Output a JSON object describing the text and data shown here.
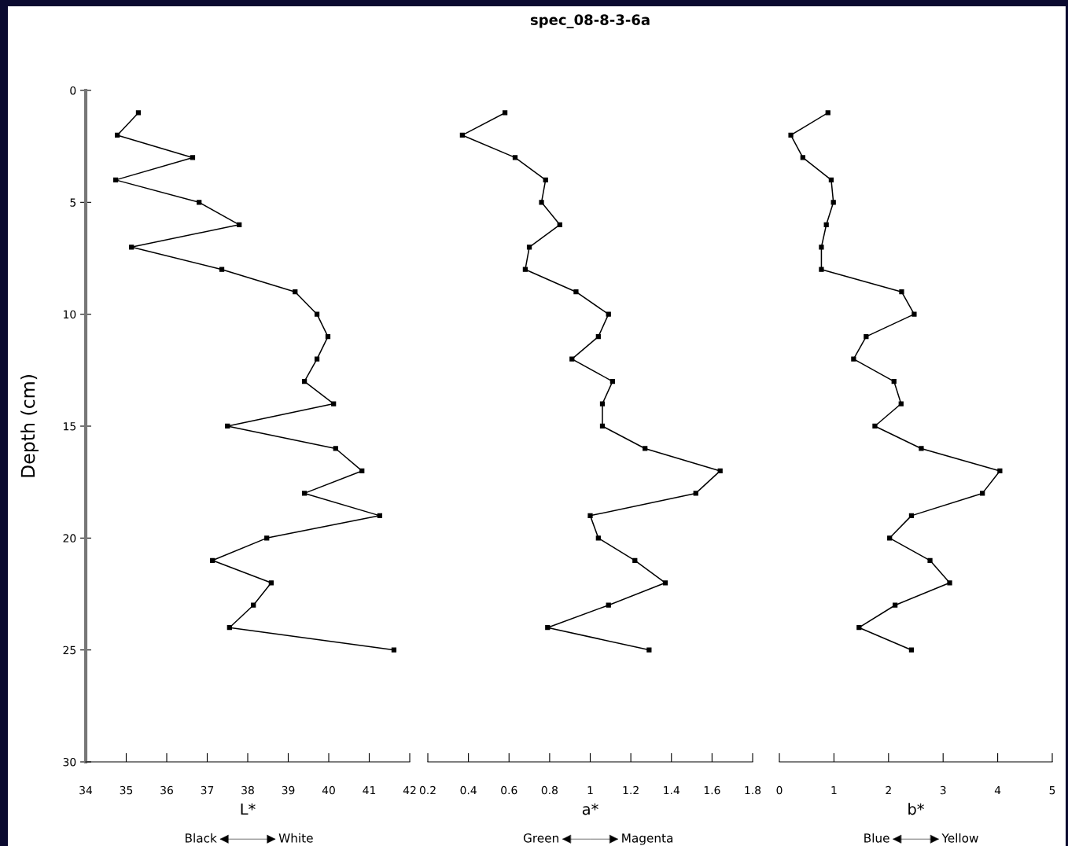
{
  "chart_data": [
    {
      "type": "line",
      "ylabel": "Depth (cm)",
      "xlabel": "L*",
      "annotations": [
        "Black",
        "White"
      ],
      "xlim": [
        34,
        42
      ],
      "xticks": [
        34,
        35,
        36,
        37,
        38,
        39,
        40,
        41,
        42
      ],
      "ylim": [
        30,
        0
      ],
      "yticks": [
        0,
        5,
        10,
        15,
        20,
        25,
        30
      ],
      "marker": "square",
      "line_style": "solid",
      "grid": false,
      "series": [
        {
          "color": "#000000",
          "x": [
            35.3,
            34.78,
            36.64,
            34.74,
            36.8,
            37.79,
            35.13,
            37.36,
            39.17,
            39.71,
            39.98,
            39.71,
            39.4,
            40.12,
            37.5,
            40.17,
            40.82,
            39.4,
            41.26,
            38.47,
            37.13,
            38.58,
            38.14,
            37.55,
            41.61
          ],
          "values": [
            1,
            2,
            3,
            4,
            5,
            6,
            7,
            8,
            9,
            10,
            11,
            12,
            13,
            14,
            15,
            16,
            17,
            18,
            19,
            20,
            21,
            22,
            23,
            24,
            25
          ]
        }
      ]
    },
    {
      "type": "line",
      "title": "spec_08-8-3-6a",
      "xlabel": "a*",
      "annotations": [
        "Green",
        "Magenta"
      ],
      "xlim": [
        0.2,
        1.8
      ],
      "xticks": [
        0.2,
        0.4,
        0.6,
        0.8,
        1,
        1.2,
        1.4,
        1.6,
        1.8
      ],
      "ylim": [
        30,
        0
      ],
      "tick_labels": "x",
      "marker": "square",
      "line_style": "solid",
      "grid": false,
      "series": [
        {
          "color": "#000000",
          "x": [
            0.58,
            0.37,
            0.63,
            0.78,
            0.76,
            0.85,
            0.7,
            0.68,
            0.93,
            1.09,
            1.04,
            0.91,
            1.11,
            1.06,
            1.06,
            1.27,
            1.64,
            1.52,
            1.0,
            1.04,
            1.22,
            1.37,
            1.09,
            0.79,
            1.29
          ],
          "values": [
            1,
            2,
            3,
            4,
            5,
            6,
            7,
            8,
            9,
            10,
            11,
            12,
            13,
            14,
            15,
            16,
            17,
            18,
            19,
            20,
            21,
            22,
            23,
            24,
            25
          ]
        }
      ]
    },
    {
      "type": "line",
      "xlabel": "b*",
      "annotations": [
        "Blue",
        "Yellow"
      ],
      "xlim": [
        0,
        5
      ],
      "xticks": [
        0,
        1,
        2,
        3,
        4,
        5
      ],
      "ylim": [
        30,
        0
      ],
      "tick_labels": "x",
      "marker": "square",
      "line_style": "solid",
      "grid": false,
      "series": [
        {
          "color": "#000000",
          "x": [
            0.89,
            0.21,
            0.43,
            0.95,
            0.99,
            0.86,
            0.77,
            0.77,
            2.24,
            2.47,
            1.59,
            1.36,
            2.1,
            2.23,
            1.75,
            2.6,
            4.04,
            3.72,
            2.42,
            2.02,
            2.76,
            3.12,
            2.12,
            1.46,
            2.42
          ],
          "values": [
            1,
            2,
            3,
            4,
            5,
            6,
            7,
            8,
            9,
            10,
            11,
            12,
            13,
            14,
            15,
            16,
            17,
            18,
            19,
            20,
            21,
            22,
            23,
            24,
            25
          ]
        }
      ]
    }
  ]
}
